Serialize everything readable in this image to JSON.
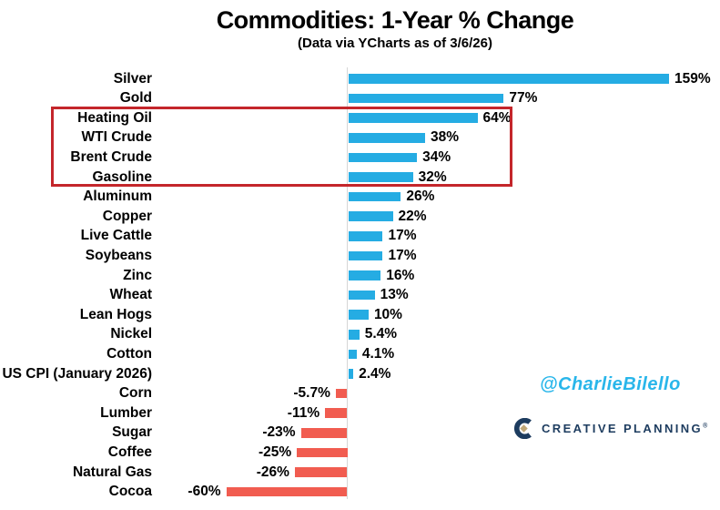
{
  "title": "Commodities: 1-Year % Change",
  "subtitle": "(Data via YCharts as of 3/6/26)",
  "watermark": "@CharlieBilello",
  "logo": {
    "text": "CREATIVE PLANNING",
    "trademark": "®"
  },
  "colors": {
    "positive_bar": "#25ace3",
    "negative_bar": "#f15c50",
    "highlight_box": "#c4262b",
    "watermark_text": "#29b6ea",
    "logo_navy": "#1d3c5f",
    "logo_gold": "#c0a878",
    "axis_line": "#d6d6d6",
    "text": "#000000"
  },
  "chart_data": {
    "type": "bar",
    "orientation": "horizontal",
    "title": "Commodities: 1-Year % Change",
    "subtitle": "(Data via YCharts as of 3/6/26)",
    "xlabel": "",
    "ylabel": "",
    "grid": false,
    "legend": false,
    "xlim": [
      -75,
      185
    ],
    "categories": [
      "Silver",
      "Gold",
      "Heating Oil",
      "WTI Crude",
      "Brent Crude",
      "Gasoline",
      "Aluminum",
      "Copper",
      "Live Cattle",
      "Soybeans",
      "Zinc",
      "Wheat",
      "Lean Hogs",
      "Nickel",
      "Cotton",
      "US CPI (January 2026)",
      "Corn",
      "Lumber",
      "Sugar",
      "Coffee",
      "Natural Gas",
      "Cocoa"
    ],
    "values": [
      159,
      77,
      64,
      38,
      34,
      32,
      26,
      22,
      17,
      17,
      16,
      13,
      10,
      5.4,
      4.1,
      2.4,
      -5.7,
      -11,
      -23,
      -25,
      -26,
      -60
    ],
    "value_labels": [
      "159%",
      "77%",
      "64%",
      "38%",
      "34%",
      "32%",
      "26%",
      "22%",
      "17%",
      "17%",
      "16%",
      "13%",
      "10%",
      "5.4%",
      "4.1%",
      "2.4%",
      "-5.7%",
      "-11%",
      "-23%",
      "-25%",
      "-26%",
      "-60%"
    ],
    "highlighted_categories": [
      "Heating Oil",
      "WTI Crude",
      "Brent Crude",
      "Gasoline"
    ]
  }
}
